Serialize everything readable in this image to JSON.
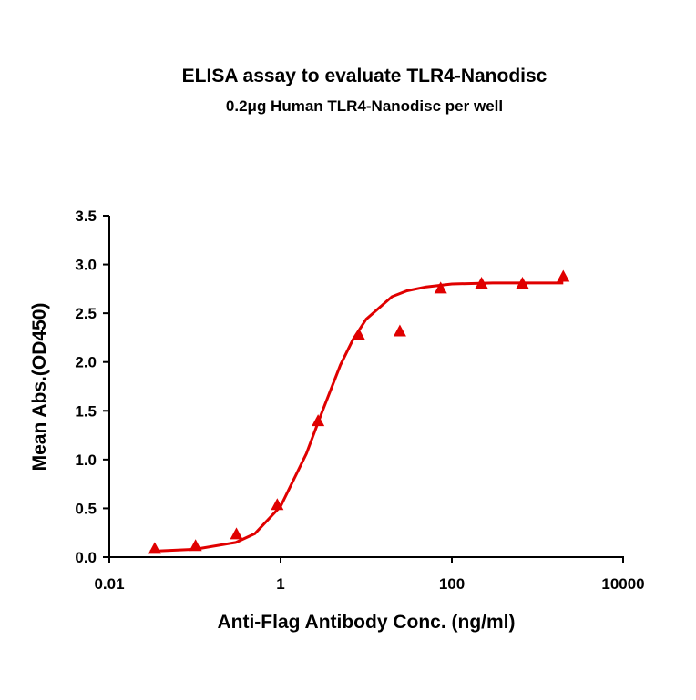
{
  "chart_data": {
    "type": "scatter",
    "title": "ELISA assay to evaluate TLR4-Nanodisc",
    "subtitle": "0.2μg Human TLR4-Nanodisc per well",
    "x_label": "Anti-Flag Antibody Conc. (ng/ml)",
    "y_label": "Mean Abs.(OD450)",
    "x_scale": "log",
    "xlim": [
      0.01,
      10000
    ],
    "xticks": [
      0.01,
      1,
      100,
      10000
    ],
    "ylim": [
      0,
      3.5
    ],
    "yticks": [
      {
        "value": 0,
        "label": "0.0"
      },
      0.5,
      {
        "value": 1,
        "label": "1.0"
      },
      1.5,
      {
        "value": 2,
        "label": "2.0"
      },
      2.5,
      {
        "value": 3,
        "label": "3.0"
      },
      3.5
    ],
    "series": [
      {
        "color": "#e00000",
        "marker": "triangle",
        "x": [
          0.0339,
          0.1016,
          0.305,
          0.914,
          2.74,
          8.23,
          24.7,
          74,
          222,
          667,
          2000
        ],
        "values": [
          0.08,
          0.11,
          0.23,
          0.53,
          1.39,
          2.27,
          2.31,
          2.75,
          2.8,
          2.8,
          2.87
        ]
      },
      {
        "color": "#e00000",
        "line": true,
        "x": [
          0.03,
          0.1,
          0.3,
          0.5,
          1,
          2,
          3,
          5,
          7,
          10,
          20,
          30,
          50,
          100,
          300,
          1000,
          2000
        ],
        "values": [
          0.06,
          0.08,
          0.15,
          0.24,
          0.52,
          1.06,
          1.47,
          1.97,
          2.23,
          2.44,
          2.67,
          2.73,
          2.77,
          2.8,
          2.81,
          2.81,
          2.81
        ]
      }
    ]
  }
}
